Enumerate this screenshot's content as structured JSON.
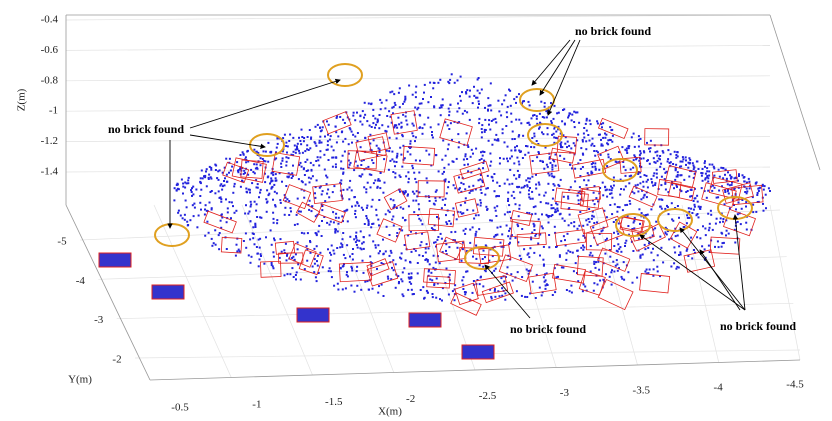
{
  "chart_data": {
    "type": "scatter3d",
    "xlabel": "X(m)",
    "ylabel": "Y(m)",
    "zlabel": "Z(m)",
    "xlim": [
      -0.5,
      -4.5
    ],
    "xticks": [
      -0.5,
      -1,
      -1.5,
      -2,
      -2.5,
      -3,
      -3.5,
      -4,
      -4.5
    ],
    "ylim": [
      -5,
      -2
    ],
    "yticks": [
      -5,
      -4,
      -3,
      -2
    ],
    "zlim": [
      -0.4,
      -1.4
    ],
    "zticks": [
      -0.4,
      -0.6,
      -0.8,
      -1,
      -1.2,
      -1.4
    ],
    "grid": true,
    "annotations": [
      "no brick found",
      "no brick found",
      "no brick found",
      "no brick found"
    ]
  }
}
